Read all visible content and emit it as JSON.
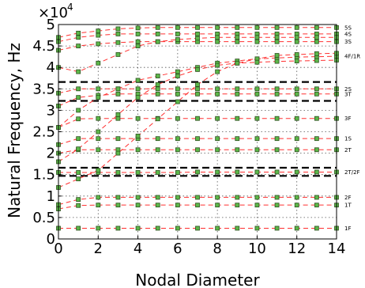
{
  "chart_data": {
    "type": "line",
    "title": "",
    "xlabel": "Nodal Diameter",
    "ylabel": "Natural Frequency, Hz",
    "y_multiplier_label": "×10",
    "y_multiplier_exponent": "4",
    "xlim": [
      0,
      14
    ],
    "ylim": [
      0,
      5
    ],
    "y_scale_factor": 10000,
    "grid": true,
    "x_ticks": [
      0,
      2,
      4,
      6,
      8,
      10,
      12,
      14
    ],
    "x_tick_labels": [
      "0",
      "2",
      "4",
      "6",
      "8",
      "10",
      "12",
      "14"
    ],
    "y_ticks": [
      0,
      0.5,
      1,
      1.5,
      2,
      2.5,
      3,
      3.5,
      4,
      4.5,
      5
    ],
    "y_tick_labels": [
      "0",
      "0.5",
      "1",
      "1.5",
      "2",
      "2.5",
      "3",
      "3.5",
      "4",
      "4.5",
      "5"
    ],
    "x": [
      0,
      1,
      2,
      3,
      4,
      5,
      6,
      7,
      8,
      9,
      10,
      11,
      12,
      13,
      14
    ],
    "colors": {
      "line": "#ff3030",
      "marker_fill": "#5cb84a",
      "marker_edge": "#2f4f1f",
      "grid": "#555555",
      "band": "#000000"
    },
    "bands": [
      1.47,
      1.66,
      3.22,
      3.66
    ],
    "series": [
      {
        "name": "1F",
        "values": [
          0.25,
          0.25,
          0.25,
          0.25,
          0.25,
          0.25,
          0.25,
          0.25,
          0.25,
          0.25,
          0.25,
          0.25,
          0.25,
          0.25,
          0.25
        ]
      },
      {
        "name": "1T",
        "values": [
          0.7,
          0.78,
          0.79,
          0.79,
          0.79,
          0.79,
          0.79,
          0.79,
          0.79,
          0.79,
          0.79,
          0.79,
          0.79,
          0.79,
          0.79
        ]
      },
      {
        "name": "2F",
        "values": [
          0.8,
          0.92,
          0.97,
          0.97,
          0.97,
          0.97,
          0.97,
          0.97,
          0.97,
          0.97,
          0.97,
          0.97,
          0.97,
          0.97,
          0.97
        ]
      },
      {
        "name": "2T/2F",
        "values": [
          1.55,
          1.55,
          1.55,
          1.55,
          1.55,
          1.55,
          1.55,
          1.56,
          1.56,
          1.56,
          1.56,
          1.56,
          1.56,
          1.56,
          1.56
        ]
      },
      {
        "name": "2T",
        "values": [
          2.0,
          2.08,
          2.08,
          2.08,
          2.08,
          2.08,
          2.08,
          2.08,
          2.08,
          2.08,
          2.08,
          2.08,
          2.08,
          2.08,
          2.08
        ]
      },
      {
        "name": "1S",
        "values": [
          2.2,
          2.34,
          2.34,
          2.34,
          2.34,
          2.34,
          2.34,
          2.34,
          2.34,
          2.34,
          2.34,
          2.34,
          2.34,
          2.34,
          2.34
        ]
      },
      {
        "name": "3F",
        "values": [
          2.6,
          2.8,
          2.81,
          2.81,
          2.81,
          2.81,
          2.81,
          2.81,
          2.81,
          2.81,
          2.81,
          2.81,
          2.81,
          2.81,
          2.81
        ]
      },
      {
        "name": "3T",
        "values": [
          3.1,
          3.3,
          3.35,
          3.38,
          3.38,
          3.38,
          3.38,
          3.38,
          3.38,
          3.38,
          3.38,
          3.38,
          3.38,
          3.38,
          3.38
        ]
      },
      {
        "name": "2S",
        "values": [
          3.4,
          3.5,
          3.5,
          3.5,
          3.5,
          3.5,
          3.5,
          3.5,
          3.5,
          3.5,
          3.5,
          3.5,
          3.5,
          3.5,
          3.5
        ]
      },
      {
        "name": "4F/1R",
        "values": [
          2.6,
          3.0,
          3.3,
          3.5,
          3.7,
          3.8,
          3.9,
          4.0,
          4.1,
          4.15,
          4.2,
          4.22,
          4.24,
          4.25,
          4.26
        ]
      },
      {
        "name": "3S",
        "values": [
          4.4,
          4.5,
          4.55,
          4.58,
          4.6,
          4.6,
          4.6,
          4.6,
          4.6,
          4.6,
          4.6,
          4.6,
          4.6,
          4.6,
          4.6
        ]
      },
      {
        "name": "4S",
        "values": [
          4.6,
          4.7,
          4.75,
          4.78,
          4.78,
          4.78,
          4.78,
          4.78,
          4.78,
          4.78,
          4.78,
          4.78,
          4.78,
          4.78,
          4.78
        ]
      },
      {
        "name": "5S",
        "values": [
          4.7,
          4.8,
          4.85,
          4.9,
          4.92,
          4.93,
          4.93,
          4.93,
          4.93,
          4.93,
          4.93,
          4.93,
          4.93,
          4.93,
          4.93
        ]
      },
      {
        "name": "",
        "values": [
          1.2,
          1.4,
          1.6,
          2.0,
          2.4,
          2.8,
          3.2,
          3.6,
          3.9,
          4.1,
          4.2,
          4.28,
          4.3,
          4.32,
          4.33
        ]
      },
      {
        "name": "",
        "values": [
          1.8,
          2.1,
          2.5,
          2.9,
          3.3,
          3.6,
          3.8,
          3.95,
          4.05,
          4.1,
          4.12,
          4.14,
          4.15,
          4.16,
          4.17
        ]
      },
      {
        "name": "",
        "values": [
          4.0,
          3.9,
          4.1,
          4.3,
          4.5,
          4.6,
          4.65,
          4.68,
          4.7,
          4.7,
          4.7,
          4.7,
          4.7,
          4.7,
          4.7
        ]
      }
    ]
  }
}
